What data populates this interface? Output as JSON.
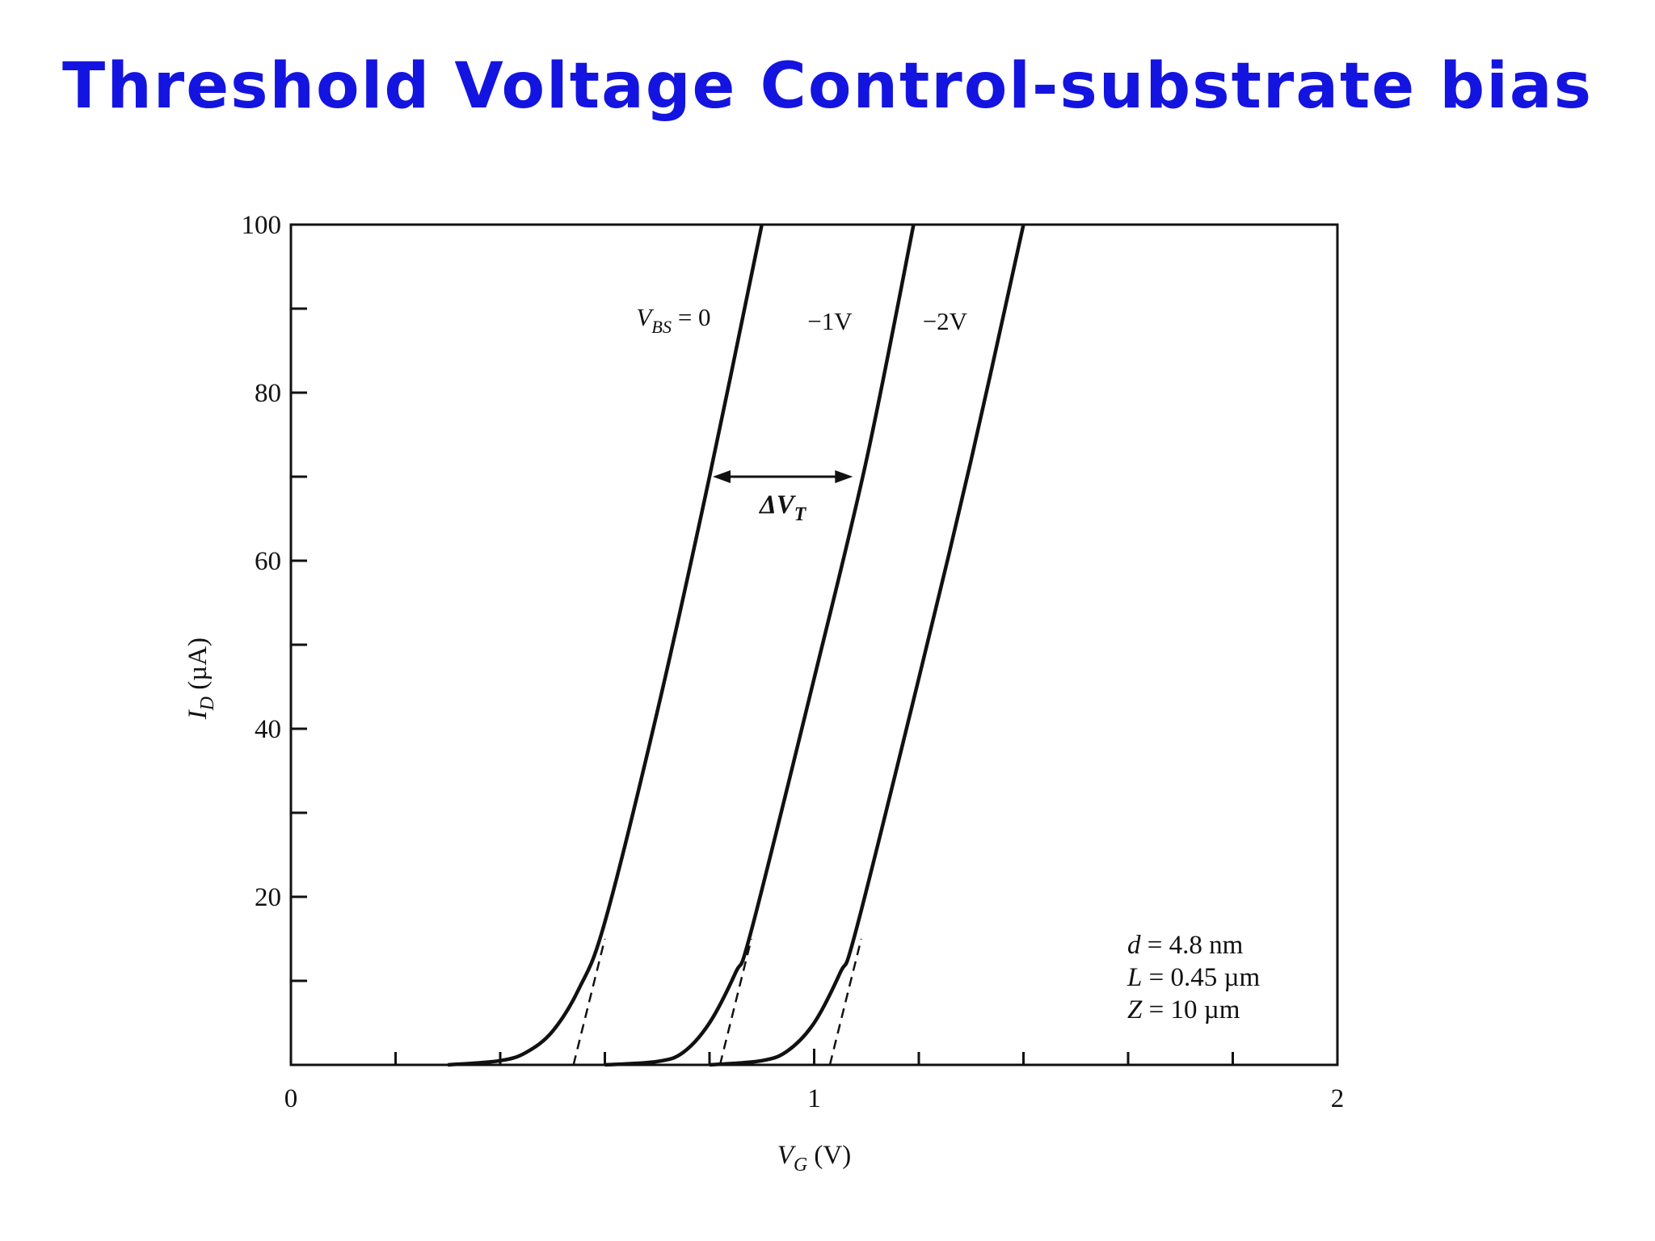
{
  "slide": {
    "title": "Threshold Voltage Control-substrate bias",
    "title_color": "#1414e0"
  },
  "chart_data": {
    "type": "line",
    "title": "",
    "xlabel": "V_G (V)",
    "ylabel": "I_D (µA)",
    "xlim": [
      0,
      2
    ],
    "ylim": [
      0,
      100
    ],
    "x_ticks": [
      0,
      1,
      2
    ],
    "x_minor_ticks": [
      0.2,
      0.4,
      0.6,
      0.8,
      1.2,
      1.4,
      1.6,
      1.8
    ],
    "y_ticks": [
      20,
      40,
      60,
      80,
      100
    ],
    "y_minor_ticks": [
      10,
      30,
      50,
      70,
      90
    ],
    "grid": false,
    "legend": "none",
    "series": [
      {
        "name": "V_BS = 0",
        "label_parts": [
          "V",
          "BS",
          " = 0"
        ],
        "x": [
          0.3,
          0.4,
          0.45,
          0.5,
          0.55,
          0.6,
          0.7,
          0.8,
          0.9
        ],
        "y": [
          0,
          0.5,
          1.5,
          4,
          9,
          17,
          42,
          70,
          100
        ],
        "extrapolation": [
          [
            0.54,
            0
          ],
          [
            0.6,
            15
          ]
        ]
      },
      {
        "name": "−1V",
        "x": [
          0.6,
          0.7,
          0.75,
          0.8,
          0.85,
          0.88,
          1.0,
          1.1,
          1.19
        ],
        "y": [
          0,
          0.4,
          1.5,
          5,
          11,
          16,
          46,
          72,
          100
        ],
        "extrapolation": [
          [
            0.82,
            0
          ],
          [
            0.88,
            15
          ]
        ]
      },
      {
        "name": "−2V",
        "x": [
          0.8,
          0.9,
          0.95,
          1.0,
          1.05,
          1.08,
          1.2,
          1.3,
          1.4
        ],
        "y": [
          0,
          0.5,
          1.7,
          5,
          11,
          16,
          46,
          72,
          100
        ],
        "extrapolation": [
          [
            1.03,
            0
          ],
          [
            1.09,
            15
          ]
        ]
      }
    ],
    "annotations": {
      "delta_vt": {
        "text_main": "ΔV",
        "text_sub": "T",
        "x_from": 0.8,
        "x_to": 1.08,
        "y": 70
      },
      "params": [
        "d = 4.8 nm",
        "L = 0.45 µm",
        "Z = 10 µm"
      ]
    }
  }
}
